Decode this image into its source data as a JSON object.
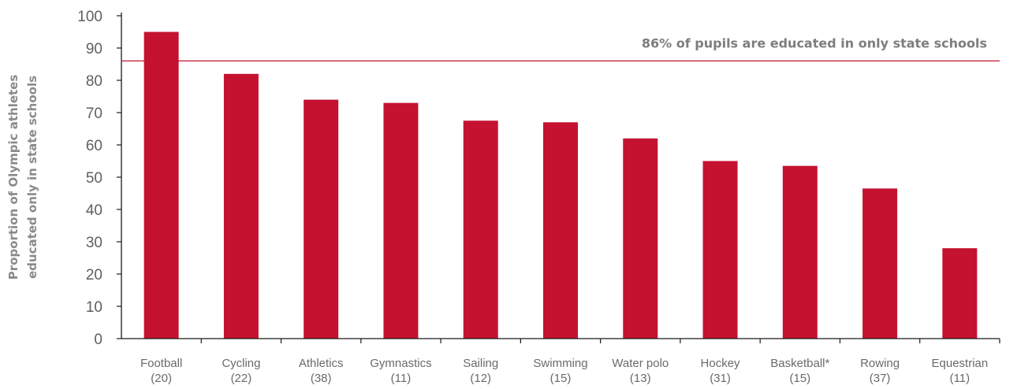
{
  "chart_data": {
    "type": "bar",
    "title": "",
    "xlabel": "",
    "ylabel": [
      "Proportion of Olympic athletes",
      "educated only in state schools"
    ],
    "ylim": [
      0,
      100
    ],
    "yticks": [
      "0",
      "10",
      "20",
      "30",
      "40",
      "50",
      "60",
      "70",
      "80",
      "90",
      "100"
    ],
    "categories": [
      [
        "Football",
        "(20)"
      ],
      [
        "Cycling",
        "(22)"
      ],
      [
        "Athletics",
        "(38)"
      ],
      [
        "Gymnastics",
        "(11)"
      ],
      [
        "Sailing",
        "(12)"
      ],
      [
        "Swimming",
        "(15)"
      ],
      [
        "Water polo",
        "(13)"
      ],
      [
        "Hockey",
        "(31)"
      ],
      [
        "Basketball*",
        "(15)"
      ],
      [
        "Rowing",
        "(37)"
      ],
      [
        "Equestrian",
        "(11)"
      ]
    ],
    "values": [
      95,
      82,
      74,
      73,
      67.5,
      67,
      62,
      55,
      53.5,
      46.5,
      28
    ],
    "reference_line": {
      "value": 86,
      "label": "86% of pupils are educated in only state schools"
    },
    "grid": false,
    "legend": "none",
    "colors": {
      "bar": "#c41230",
      "reference_line": "#c41230",
      "axis": "#1a1a1a"
    }
  }
}
